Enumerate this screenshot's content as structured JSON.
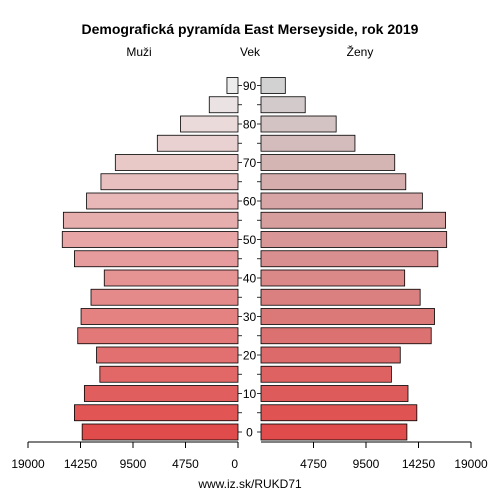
{
  "chart_data": {
    "type": "bar",
    "title": "Demografická pyramída East Merseyside, rok 2019",
    "left_label": "Muži",
    "center_label": "Vek",
    "right_label": "Ženy",
    "source": "www.iz.sk/RUKD71",
    "age_groups": [
      "0-4",
      "5-9",
      "10-14",
      "15-19",
      "20-24",
      "25-29",
      "30-34",
      "35-39",
      "40-44",
      "45-49",
      "50-54",
      "55-59",
      "60-64",
      "65-69",
      "70-74",
      "75-79",
      "80-84",
      "85-89",
      "90+"
    ],
    "age_ticks": [
      0,
      10,
      20,
      30,
      40,
      50,
      60,
      70,
      80,
      90
    ],
    "x_ticks": [
      19000,
      14250,
      9500,
      4750,
      0,
      4750,
      9500,
      14250,
      19000
    ],
    "xlim": [
      0,
      19000
    ],
    "series": [
      {
        "name": "Muži",
        "values": [
          14100,
          14800,
          13900,
          12500,
          12800,
          14500,
          14200,
          13300,
          12100,
          14800,
          15900,
          15800,
          13700,
          12400,
          11100,
          7300,
          5200,
          2600,
          1000
        ]
      },
      {
        "name": "Ženy",
        "values": [
          13200,
          14100,
          13300,
          11800,
          12600,
          15400,
          15700,
          14400,
          13000,
          16000,
          16800,
          16700,
          14600,
          13100,
          12100,
          8500,
          6800,
          4000,
          2200
        ]
      }
    ],
    "colors": {
      "male_bottom": "#e04c4c",
      "male_top": "#ececec",
      "female_bottom": "#e04c4c",
      "female_top": "#d2d2d2",
      "outline": "#000000"
    }
  }
}
